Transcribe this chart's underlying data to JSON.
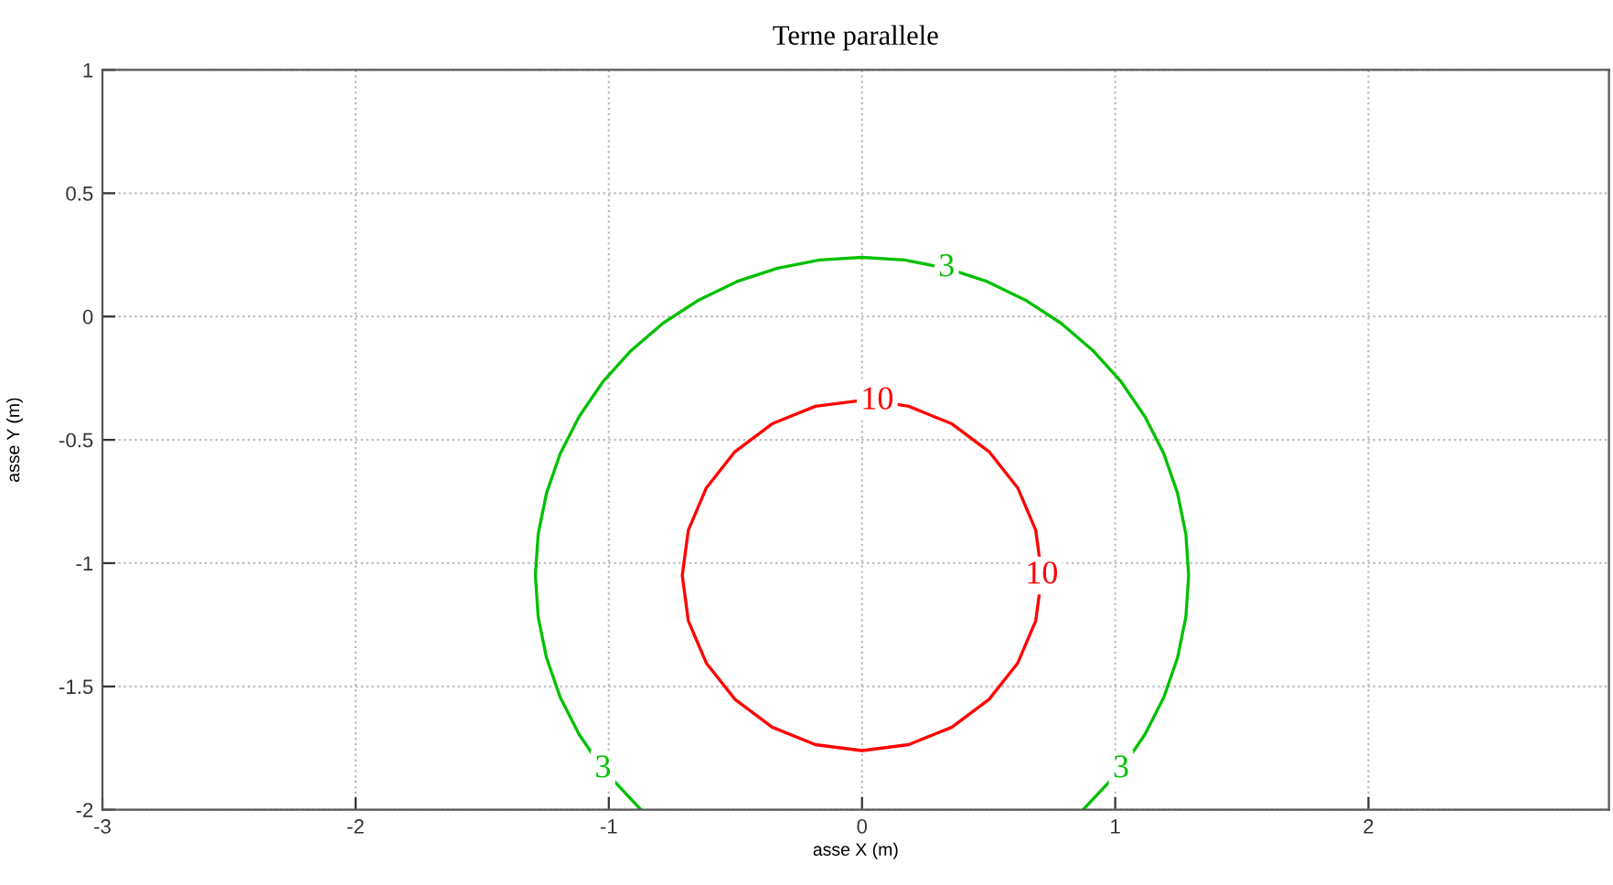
{
  "chart_data": {
    "type": "line",
    "title": "Terne parallele",
    "xlabel": "asse X (m)",
    "ylabel": "asse Y (m)",
    "xlim": [
      -3,
      2.95
    ],
    "xticks": [
      -3,
      -2,
      -1,
      0,
      1,
      2
    ],
    "ylim": [
      -2,
      1
    ],
    "yticks": [
      -2,
      -1.5,
      -1,
      -0.5,
      0,
      0.5,
      1
    ],
    "grid": true,
    "legend": false,
    "marker": "none",
    "line_style": "solid",
    "series": [
      {
        "color": "#00c000",
        "x": [
          -0.873,
          -1.023,
          -1.117,
          -1.192,
          -1.246,
          -1.279,
          -1.29,
          -1.279,
          -1.246,
          -1.192,
          -1.117,
          -1.023,
          -0.912,
          -0.786,
          -0.645,
          -0.494,
          -0.334,
          -0.168,
          0,
          0.168,
          0.334,
          0.494,
          0.645,
          0.786,
          0.912,
          1.023,
          1.117,
          1.192,
          1.246,
          1.279,
          1.29,
          1.279,
          1.246,
          1.192,
          1.117,
          1.023,
          0.873
        ],
        "values": [
          -2,
          -1.836,
          -1.695,
          -1.544,
          -1.384,
          -1.218,
          -1.05,
          -0.882,
          -0.716,
          -0.556,
          -0.405,
          -0.264,
          -0.138,
          -0.027,
          0.067,
          0.142,
          0.196,
          0.229,
          0.24,
          0.229,
          0.196,
          0.142,
          0.067,
          -0.027,
          -0.138,
          -0.264,
          -0.405,
          -0.556,
          -0.716,
          -0.882,
          -1.05,
          -1.218,
          -1.384,
          -1.544,
          -1.695,
          -1.836,
          -2
        ]
      },
      {
        "color": "#ff0000",
        "x": [
          0.06,
          0,
          -0.184,
          -0.355,
          -0.502,
          -0.615,
          -0.686,
          -0.71,
          -0.686,
          -0.615,
          -0.502,
          -0.355,
          -0.184,
          0,
          0.184,
          0.355,
          0.502,
          0.615,
          0.686,
          0.71,
          0.686,
          0.615,
          0.502,
          0.355,
          0.184,
          0.1
        ],
        "values": [
          -0.343,
          -0.34,
          -0.364,
          -0.435,
          -0.548,
          -0.695,
          -0.866,
          -1.05,
          -1.234,
          -1.405,
          -1.552,
          -1.665,
          -1.736,
          -1.76,
          -1.736,
          -1.665,
          -1.552,
          -1.405,
          -1.234,
          -1.05,
          -0.866,
          -0.695,
          -0.548,
          -0.435,
          -0.364,
          -0.35
        ]
      }
    ],
    "annotations": [
      {
        "text": "3",
        "x": 0.334,
        "y": 0.196
      },
      {
        "text": "3",
        "x": -1.023,
        "y": -1.836
      },
      {
        "text": "3",
        "x": 1.023,
        "y": -1.836
      },
      {
        "text": "10",
        "x": 0.06,
        "y": -0.343
      },
      {
        "text": "10",
        "x": 0.71,
        "y": -1.05
      }
    ]
  }
}
